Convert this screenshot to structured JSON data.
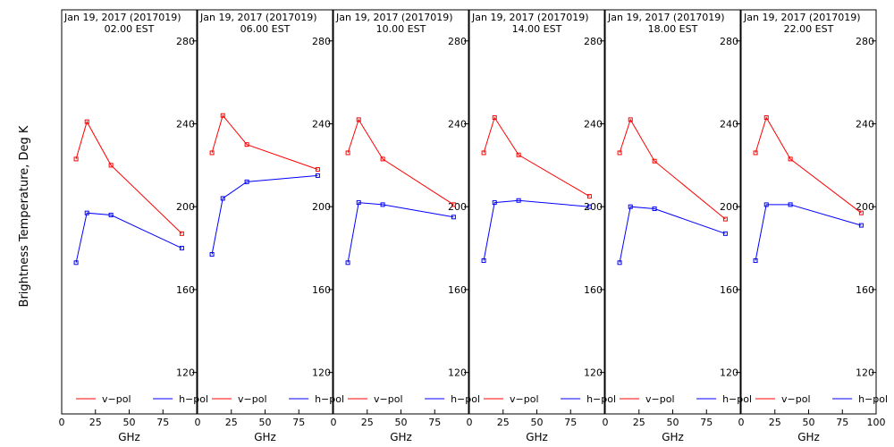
{
  "figure": {
    "ylabel": "Brightness Temperature, Deg K",
    "xlabel": "GHz",
    "ylim": [
      100,
      295
    ],
    "xlim": [
      0,
      100
    ],
    "yticks": [
      120,
      160,
      200,
      240,
      280
    ],
    "xticks": [
      0,
      25,
      50,
      75,
      100
    ],
    "legend": [
      {
        "name": "v−pol",
        "color": "#ff0000"
      },
      {
        "name": "h−pol",
        "color": "#0000ff"
      }
    ]
  },
  "chart_data": [
    {
      "type": "line",
      "title": "Jan 19, 2017 (2017019)",
      "subtitle": "02.00 EST",
      "xlabel": "GHz",
      "ylabel": "Brightness Temperature, Deg K",
      "x": [
        10.65,
        18.7,
        36.5,
        89.0
      ],
      "series": [
        {
          "name": "v−pol",
          "color": "#ff0000",
          "values": [
            223,
            241,
            220,
            187
          ]
        },
        {
          "name": "h−pol",
          "color": "#0000ff",
          "values": [
            173,
            197,
            196,
            180
          ]
        }
      ]
    },
    {
      "type": "line",
      "title": "Jan 19, 2017 (2017019)",
      "subtitle": "06.00 EST",
      "xlabel": "GHz",
      "x": [
        10.65,
        18.7,
        36.5,
        89.0
      ],
      "series": [
        {
          "name": "v−pol",
          "color": "#ff0000",
          "values": [
            226,
            244,
            230,
            218
          ]
        },
        {
          "name": "h−pol",
          "color": "#0000ff",
          "values": [
            177,
            204,
            212,
            215
          ]
        }
      ]
    },
    {
      "type": "line",
      "title": "Jan 19, 2017 (2017019)",
      "subtitle": "10.00 EST",
      "xlabel": "GHz",
      "x": [
        10.65,
        18.7,
        36.5,
        89.0
      ],
      "series": [
        {
          "name": "v−pol",
          "color": "#ff0000",
          "values": [
            226,
            242,
            223,
            201
          ]
        },
        {
          "name": "h−pol",
          "color": "#0000ff",
          "values": [
            173,
            202,
            201,
            195
          ]
        }
      ]
    },
    {
      "type": "line",
      "title": "Jan 19, 2017 (2017019)",
      "subtitle": "14.00 EST",
      "xlabel": "GHz",
      "x": [
        10.65,
        18.7,
        36.5,
        89.0
      ],
      "series": [
        {
          "name": "v−pol",
          "color": "#ff0000",
          "values": [
            226,
            243,
            225,
            205
          ]
        },
        {
          "name": "h−pol",
          "color": "#0000ff",
          "values": [
            174,
            202,
            203,
            200
          ]
        }
      ]
    },
    {
      "type": "line",
      "title": "Jan 19, 2017 (2017019)",
      "subtitle": "18.00 EST",
      "xlabel": "GHz",
      "x": [
        10.65,
        18.7,
        36.5,
        89.0
      ],
      "series": [
        {
          "name": "v−pol",
          "color": "#ff0000",
          "values": [
            226,
            242,
            222,
            194
          ]
        },
        {
          "name": "h−pol",
          "color": "#0000ff",
          "values": [
            173,
            200,
            199,
            187
          ]
        }
      ]
    },
    {
      "type": "line",
      "title": "Jan 19, 2017 (2017019)",
      "subtitle": "22.00 EST",
      "xlabel": "GHz",
      "x": [
        10.65,
        18.7,
        36.5,
        89.0
      ],
      "series": [
        {
          "name": "v−pol",
          "color": "#ff0000",
          "values": [
            226,
            243,
            223,
            197
          ]
        },
        {
          "name": "h−pol",
          "color": "#0000ff",
          "values": [
            174,
            201,
            201,
            191
          ]
        }
      ]
    }
  ]
}
